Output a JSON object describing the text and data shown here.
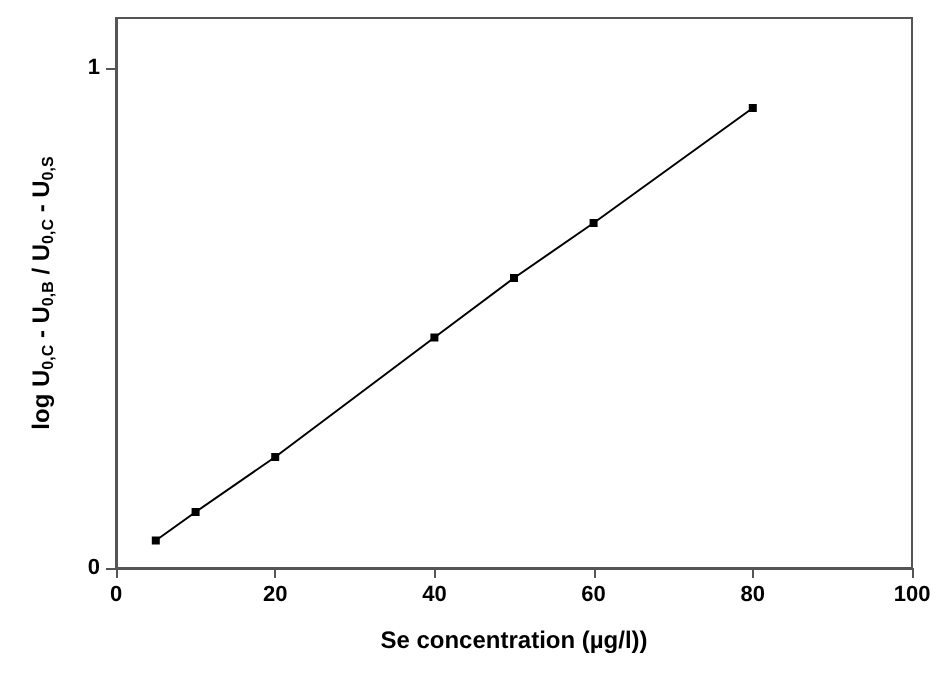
{
  "chart_data": {
    "type": "line",
    "xlabel": "Se concentration (µg/l))",
    "ylabel": "log U$_{0,C}$ - U$_{0,B}$ / U$_{0,C}$ - U$_{0,S}$",
    "x": [
      5,
      10,
      20,
      40,
      50,
      60,
      80
    ],
    "series": [
      {
        "color": "#000000",
        "values": [
          0.055,
          0.112,
          0.222,
          0.461,
          0.58,
          0.69,
          0.92
        ]
      }
    ],
    "xlim": [
      0,
      100
    ],
    "xticks": [
      0,
      20,
      40,
      60,
      80,
      100
    ],
    "ylim": [
      0,
      1.1
    ],
    "yticks": [
      0,
      1
    ],
    "marker": "square",
    "line_style": "solid",
    "grid": false
  }
}
